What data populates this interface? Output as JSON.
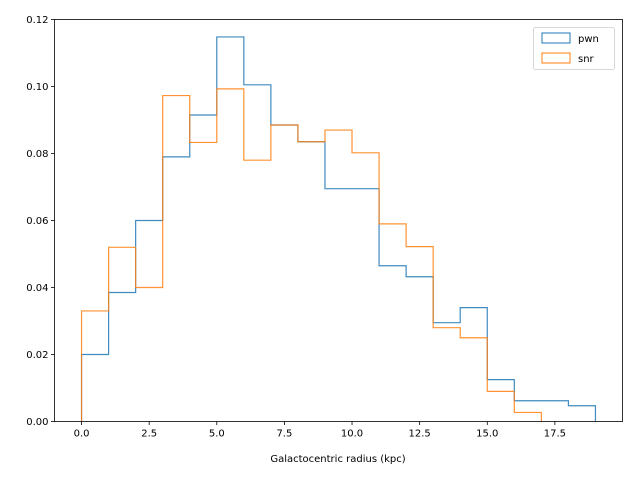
{
  "chart_data": {
    "type": "step-histogram",
    "title": "",
    "xlabel": "Galactocentric radius (kpc)",
    "ylabel": "",
    "xlim": [
      -1.0,
      20.0
    ],
    "ylim": [
      0,
      0.12
    ],
    "xticks": [
      0.0,
      2.5,
      5.0,
      7.5,
      10.0,
      12.5,
      15.0,
      17.5
    ],
    "xtick_labels": [
      "0.0",
      "2.5",
      "5.0",
      "7.5",
      "10.0",
      "12.5",
      "15.0",
      "17.5"
    ],
    "yticks": [
      0.0,
      0.02,
      0.04,
      0.06,
      0.08,
      0.1,
      0.12
    ],
    "ytick_labels": [
      "0.00",
      "0.02",
      "0.04",
      "0.06",
      "0.08",
      "0.10",
      "0.12"
    ],
    "legend_position": "top-right",
    "series": [
      {
        "name": "pwn",
        "color": "#1f77b4",
        "bin_edges": [
          0,
          1,
          2,
          3,
          4,
          5,
          6,
          7,
          8,
          9,
          10,
          11,
          12,
          13,
          14,
          15,
          16,
          17,
          18,
          19
        ],
        "values": [
          0.02,
          0.0385,
          0.06,
          0.079,
          0.0915,
          0.1148,
          0.1005,
          0.0885,
          0.0835,
          0.0695,
          0.0695,
          0.0465,
          0.0432,
          0.0295,
          0.034,
          0.0125,
          0.0062,
          0.0062,
          0.0047
        ]
      },
      {
        "name": "snr",
        "color": "#ff7f0e",
        "bin_edges": [
          0,
          1,
          2,
          3,
          4,
          5,
          6,
          7,
          8,
          9,
          10,
          11,
          12,
          13,
          14,
          15,
          16,
          17
        ],
        "values": [
          0.033,
          0.052,
          0.04,
          0.0973,
          0.0833,
          0.0993,
          0.078,
          0.0885,
          0.0835,
          0.087,
          0.0802,
          0.059,
          0.0522,
          0.028,
          0.025,
          0.009,
          0.0027
        ]
      }
    ]
  }
}
